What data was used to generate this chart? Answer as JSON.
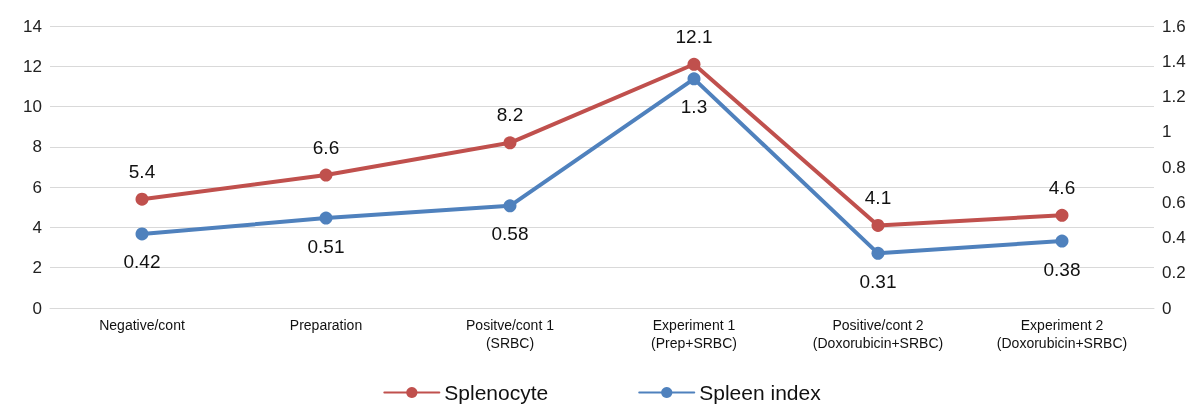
{
  "chart_data": {
    "type": "line",
    "categories": [
      "Negative/cont",
      "Preparation",
      "Positve/cont 1\n(SRBC)",
      "Experiment 1\n(Prep+SRBC)",
      "Positive/cont 2\n(Doxorubicin+SRBC)",
      "Experiment 2\n(Doxorubicin+SRBC)"
    ],
    "series": [
      {
        "name": "Splenocyte",
        "color": "#c0504d",
        "values": [
          5.4,
          6.6,
          8.2,
          12.1,
          4.1,
          4.6
        ]
      },
      {
        "name": "Spleen index",
        "color": "#4f81bd",
        "axis": "y2",
        "values": [
          0.42,
          0.51,
          0.58,
          1.3,
          0.31,
          0.38
        ]
      }
    ],
    "ylim": [
      0,
      14
    ],
    "yticks": [
      0,
      2,
      4,
      6,
      8,
      10,
      12,
      14
    ],
    "y2lim": [
      0,
      1.6
    ],
    "y2ticks": [
      0,
      0.2,
      0.4,
      0.6,
      0.8,
      1,
      1.2,
      1.4,
      1.6
    ],
    "grid": "y",
    "legend": "bottom",
    "marker": "circle",
    "line_style": "solid",
    "data_labels": true
  }
}
